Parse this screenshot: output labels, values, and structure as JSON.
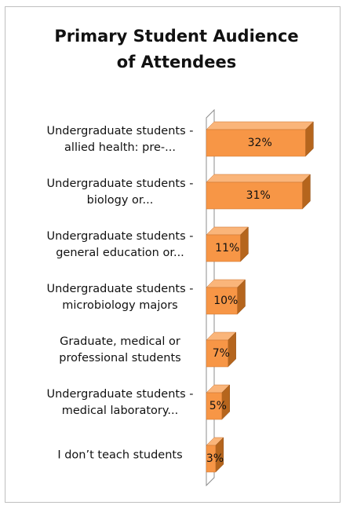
{
  "chart_data": {
    "type": "bar3d-horizontal",
    "title": "Primary Student Audience of Attendees",
    "categories": [
      "Undergraduate students - allied health: pre-...",
      "Undergraduate students - biology or...",
      "Undergraduate students - general education or...",
      "Undergraduate students - microbiology majors",
      "Graduate, medical or professional students",
      "Undergraduate students - medical laboratory...",
      "I don’t teach students"
    ],
    "values": [
      32,
      31,
      11,
      10,
      7,
      5,
      3
    ],
    "value_labels": [
      "32%",
      "31%",
      "11%",
      "10%",
      "7%",
      "5%",
      "3%"
    ],
    "color": "#f79646"
  }
}
